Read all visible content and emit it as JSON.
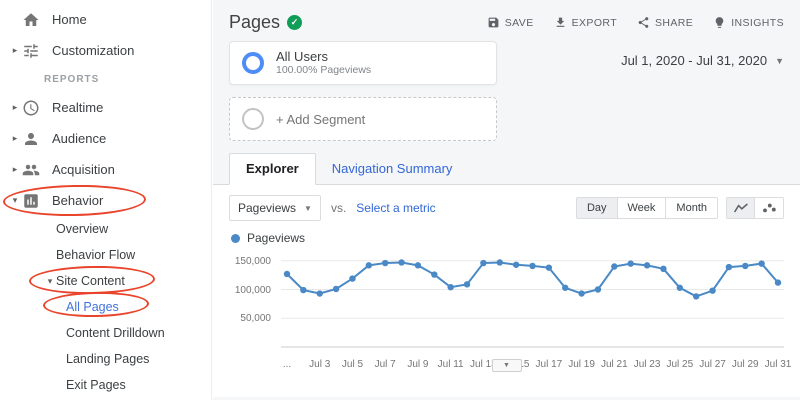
{
  "colors": {
    "accent_blue": "#4272d9",
    "link_blue": "#3367d6",
    "annotation_red": "#e8452c",
    "series_blue": "#4a89c5",
    "badge_green": "#0f9d58",
    "ring_blue": "#4e8df7"
  },
  "sidebar": {
    "items_top": [
      {
        "label": "Home"
      },
      {
        "label": "Customization"
      }
    ],
    "section_label": "REPORTS",
    "report_items": [
      {
        "label": "Realtime"
      },
      {
        "label": "Audience"
      },
      {
        "label": "Acquisition"
      },
      {
        "label": "Behavior"
      }
    ],
    "behavior_children": [
      {
        "label": "Overview"
      },
      {
        "label": "Behavior Flow"
      },
      {
        "label": "Site Content"
      }
    ],
    "site_content_children": [
      {
        "label": "All Pages",
        "active": true
      },
      {
        "label": "Content Drilldown"
      },
      {
        "label": "Landing Pages"
      },
      {
        "label": "Exit Pages"
      }
    ]
  },
  "header": {
    "title": "Pages",
    "actions": [
      {
        "label": "SAVE"
      },
      {
        "label": "EXPORT"
      },
      {
        "label": "SHARE"
      },
      {
        "label": "INSIGHTS"
      }
    ]
  },
  "segments": {
    "all_users": {
      "title": "All Users",
      "subtitle": "100.00% Pageviews"
    },
    "add_segment_label": "+ Add Segment",
    "date_range": "Jul 1, 2020 - Jul 31, 2020"
  },
  "tabs": [
    {
      "label": "Explorer",
      "active": true
    },
    {
      "label": "Navigation Summary",
      "active": false
    }
  ],
  "toolbar": {
    "metric_selector": "Pageviews",
    "vs_label": "vs.",
    "select_metric_label": "Select a metric",
    "granularity": [
      {
        "label": "Day",
        "selected": true
      },
      {
        "label": "Week",
        "selected": false
      },
      {
        "label": "Month",
        "selected": false
      }
    ]
  },
  "chart_data": {
    "type": "line",
    "legend": [
      "Pageviews"
    ],
    "series_color": "#4a89c5",
    "x": [
      "Jul 1",
      "Jul 2",
      "Jul 3",
      "Jul 4",
      "Jul 5",
      "Jul 6",
      "Jul 7",
      "Jul 8",
      "Jul 9",
      "Jul 10",
      "Jul 11",
      "Jul 12",
      "Jul 13",
      "Jul 14",
      "Jul 15",
      "Jul 16",
      "Jul 17",
      "Jul 18",
      "Jul 19",
      "Jul 20",
      "Jul 21",
      "Jul 22",
      "Jul 23",
      "Jul 24",
      "Jul 25",
      "Jul 26",
      "Jul 27",
      "Jul 28",
      "Jul 29",
      "Jul 30",
      "Jul 31"
    ],
    "values": [
      127000,
      99000,
      93000,
      101000,
      119000,
      142000,
      146000,
      147000,
      142000,
      126000,
      104000,
      109000,
      146000,
      147000,
      143000,
      141000,
      138000,
      103000,
      93000,
      100000,
      140000,
      145000,
      142000,
      136000,
      103000,
      88000,
      98000,
      139000,
      141000,
      145000,
      112000
    ],
    "ylim": [
      0,
      160000
    ],
    "y_ticks": [
      50000,
      100000,
      150000
    ],
    "y_tick_labels": [
      "50,000",
      "100,000",
      "150,000"
    ],
    "x_tick_labels": [
      "...",
      "Jul 3",
      "Jul 5",
      "Jul 7",
      "Jul 9",
      "Jul 11",
      "Jul 13",
      "Jul 15",
      "Jul 17",
      "Jul 19",
      "Jul 21",
      "Jul 23",
      "Jul 25",
      "Jul 27",
      "Jul 29",
      "Jul 31"
    ],
    "x_tick_days": [
      1,
      3,
      5,
      7,
      9,
      11,
      13,
      15,
      17,
      19,
      21,
      23,
      25,
      27,
      29,
      31
    ]
  }
}
